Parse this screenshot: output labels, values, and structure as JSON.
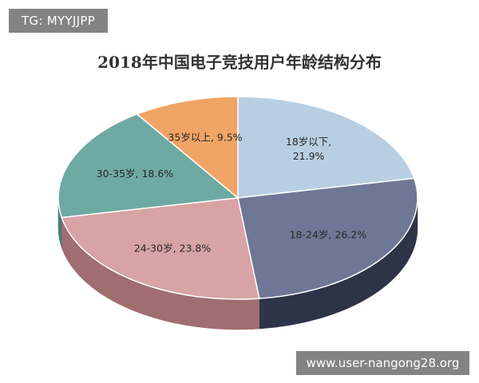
{
  "watermarks": {
    "top_left": "TG: MYYJJPP",
    "bottom_right": "www.user-nangong28.org"
  },
  "chart_data": {
    "type": "pie",
    "title": "2018年中国电子竞技用户年龄结构分布",
    "slices": [
      {
        "category": "18岁以下",
        "value": 21.9,
        "label_lines": [
          "18岁以下,",
          "21.9%"
        ],
        "color": "#b8cfe3",
        "side_color": "#7d95ab"
      },
      {
        "category": "18-24岁",
        "value": 26.2,
        "label_lines": [
          "18-24岁, 26.2%"
        ],
        "color": "#6f7796",
        "side_color": "#2e3448"
      },
      {
        "category": "24-30岁",
        "value": 23.8,
        "label_lines": [
          "24-30岁, 23.8%"
        ],
        "color": "#d8a3a4",
        "side_color": "#a06d70"
      },
      {
        "category": "30-35岁",
        "value": 18.6,
        "label_lines": [
          "30-35岁, 18.6%"
        ],
        "color": "#6ea9a2",
        "side_color": "#4a7c76"
      },
      {
        "category": "35岁以上",
        "value": 9.5,
        "label_lines": [
          "35岁以上, 9.5%"
        ],
        "color": "#f0a466",
        "side_color": "#b8733c"
      }
    ]
  }
}
